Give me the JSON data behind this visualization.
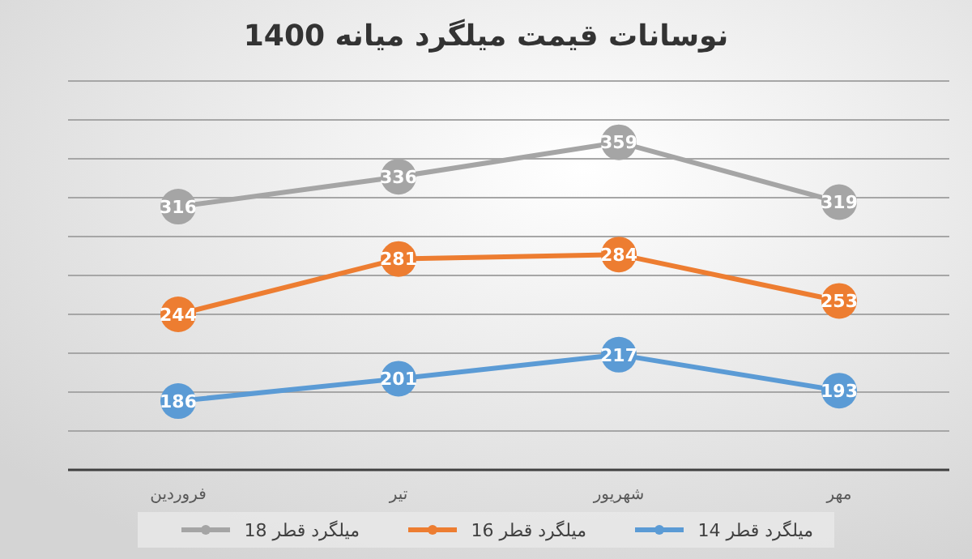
{
  "chart_data": {
    "type": "line",
    "title": "نوسانات قیمت میلگرد میانه 1400",
    "categories": [
      "فروردین",
      "تیر",
      "شهریور",
      "مهر"
    ],
    "series": [
      {
        "name": "میلگرد قطر 14",
        "color": "#5b9bd5",
        "values": [
          186,
          201,
          217,
          193
        ]
      },
      {
        "name": "میلگرد قطر 16",
        "color": "#ed7d31",
        "values": [
          244,
          281,
          284,
          253
        ]
      },
      {
        "name": "میلگرد قطر 18",
        "color": "#a5a5a5",
        "values": [
          316,
          336,
          359,
          319
        ]
      }
    ],
    "ylim": [
      140,
      400
    ],
    "yticks": [
      {
        "value": 140,
        "label": null
      },
      {
        "value": 166,
        "label": null
      },
      {
        "value": 192,
        "label": null
      },
      {
        "value": 218,
        "label": null
      },
      {
        "value": 244,
        "label": null
      },
      {
        "value": 270,
        "label": null
      },
      {
        "value": 296,
        "label": null
      },
      {
        "value": 322,
        "label": null
      },
      {
        "value": 348,
        "label": null
      },
      {
        "value": 374,
        "label": null
      },
      {
        "value": 400,
        "label": null
      }
    ],
    "tick_labels": "x",
    "grid": "y",
    "legend": "bottom",
    "marker": "circle",
    "line_style": "solid",
    "data_labels": true
  }
}
